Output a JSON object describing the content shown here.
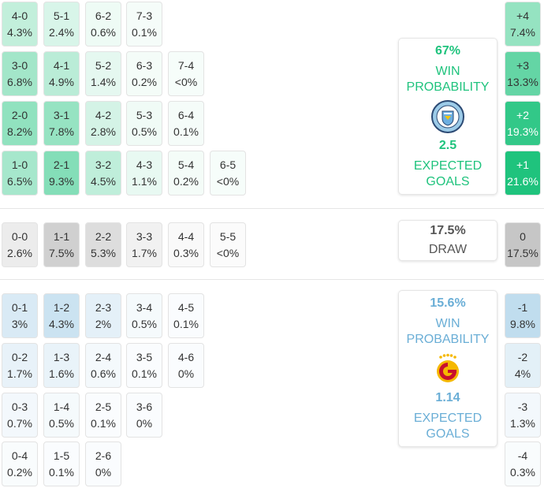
{
  "home": {
    "win_pct": "67%",
    "win_label_1": "WIN",
    "win_label_2": "PROBABILITY",
    "xg": "2.5",
    "xg_label_1": "EXPECTED",
    "xg_label_2": "GOALS",
    "crest_text": "MANCHESTER CITY",
    "color": "#1fc37d",
    "scores": [
      [
        "4-0",
        "4.3%"
      ],
      [
        "5-1",
        "2.4%"
      ],
      [
        "6-2",
        "0.6%"
      ],
      [
        "7-3",
        "0.1%"
      ],
      [
        "3-0",
        "6.8%"
      ],
      [
        "4-1",
        "4.9%"
      ],
      [
        "5-2",
        "1.4%"
      ],
      [
        "6-3",
        "0.2%"
      ],
      [
        "7-4",
        "<0%"
      ],
      [
        "2-0",
        "8.2%"
      ],
      [
        "3-1",
        "7.8%"
      ],
      [
        "4-2",
        "2.8%"
      ],
      [
        "5-3",
        "0.5%"
      ],
      [
        "6-4",
        "0.1%"
      ],
      [
        "1-0",
        "6.5%"
      ],
      [
        "2-1",
        "9.3%"
      ],
      [
        "3-2",
        "4.5%"
      ],
      [
        "4-3",
        "1.1%"
      ],
      [
        "5-4",
        "0.2%"
      ],
      [
        "6-5",
        "<0%"
      ]
    ],
    "margins": [
      [
        "+4",
        "7.4%"
      ],
      [
        "+3",
        "13.3%"
      ],
      [
        "+2",
        "19.3%"
      ],
      [
        "+1",
        "21.6%"
      ]
    ]
  },
  "draw": {
    "pct": "17.5%",
    "label": "DRAW",
    "scores": [
      [
        "0-0",
        "2.6%"
      ],
      [
        "1-1",
        "7.5%"
      ],
      [
        "2-2",
        "5.3%"
      ],
      [
        "3-3",
        "1.7%"
      ],
      [
        "4-4",
        "0.3%"
      ],
      [
        "5-5",
        "<0%"
      ]
    ],
    "margin": [
      "0",
      "17.5%"
    ]
  },
  "away": {
    "win_pct": "15.6%",
    "win_label_1": "WIN",
    "win_label_2": "PROBABILITY",
    "xg": "1.14",
    "xg_label_1": "EXPECTED",
    "xg_label_2": "GOALS",
    "color": "#6aaed6",
    "scores": [
      [
        "0-1",
        "3%"
      ],
      [
        "1-2",
        "4.3%"
      ],
      [
        "2-3",
        "2%"
      ],
      [
        "3-4",
        "0.5%"
      ],
      [
        "4-5",
        "0.1%"
      ],
      [
        "0-2",
        "1.7%"
      ],
      [
        "1-3",
        "1.6%"
      ],
      [
        "2-4",
        "0.6%"
      ],
      [
        "3-5",
        "0.1%"
      ],
      [
        "4-6",
        "0%"
      ],
      [
        "0-3",
        "0.7%"
      ],
      [
        "1-4",
        "0.5%"
      ],
      [
        "2-5",
        "0.1%"
      ],
      [
        "3-6",
        "0%"
      ],
      [
        "0-4",
        "0.2%"
      ],
      [
        "1-5",
        "0.1%"
      ],
      [
        "2-6",
        "0%"
      ]
    ],
    "margins": [
      [
        "-1",
        "9.8%"
      ],
      [
        "-2",
        "4%"
      ],
      [
        "-3",
        "1.3%"
      ],
      [
        "-4",
        "0.3%"
      ]
    ]
  }
}
